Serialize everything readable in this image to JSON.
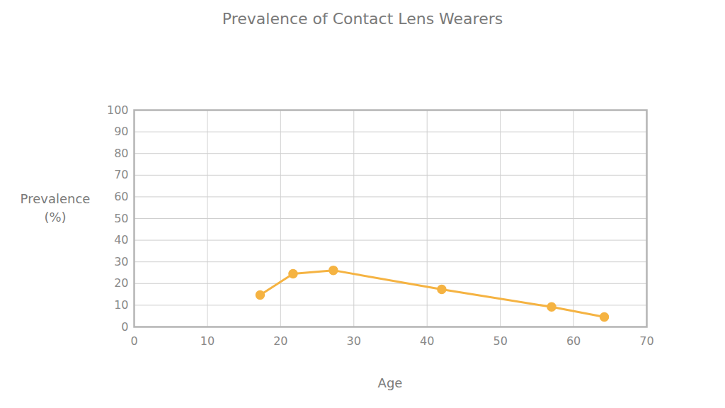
{
  "chart_data": {
    "type": "line",
    "title": "Prevalence of Contact Lens Wearers",
    "x_label": "Age",
    "y_label": "Prevalence (%)",
    "x": [
      17.2,
      21.7,
      27.2,
      42.0,
      57.0,
      64.2
    ],
    "values": [
      14.7,
      24.5,
      26.1,
      17.3,
      9.2,
      4.6
    ],
    "color": "#f5b342",
    "marker": "circle",
    "xlim": [
      0,
      70
    ],
    "xticks": [
      0,
      10,
      20,
      30,
      40,
      50,
      60,
      70
    ],
    "ylim": [
      0,
      100
    ],
    "yticks": [
      0,
      10,
      20,
      30,
      40,
      50,
      60,
      70,
      80,
      90,
      100
    ],
    "grid": true
  }
}
